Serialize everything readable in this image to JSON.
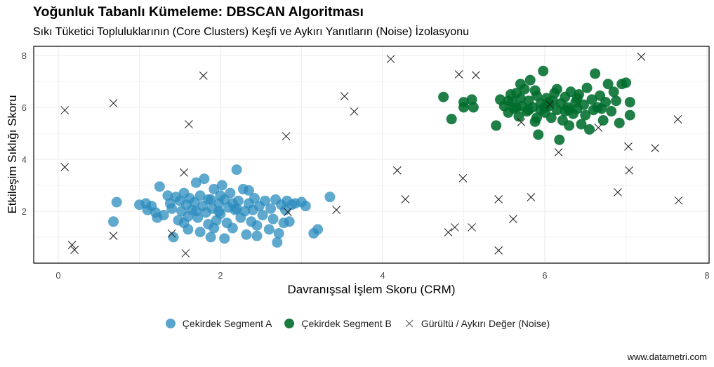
{
  "header": {
    "title": "Yoğunluk Tabanlı Kümeleme: DBSCAN Algoritması",
    "subtitle": "Sıkı Tüketici Topluluklarının (Core Clusters) Keşfi ve Aykırı Yanıtların (Noise) İzolasyonu"
  },
  "caption": "www.datametri.com",
  "colors": {
    "segment_a": "#2b8cbe",
    "segment_b": "#006d2c",
    "noise": "#000000",
    "grid": "#ebebeb",
    "axis_text": "#4d4d4d"
  },
  "legend": [
    {
      "label": "Çekirdek Segment A",
      "icon": "circle-marker-icon",
      "color": "#2b8cbe"
    },
    {
      "label": "Çekirdek Segment B",
      "icon": "circle-marker-icon",
      "color": "#006d2c"
    },
    {
      "label": "Gürültü / Aykırı Değer (Noise)",
      "icon": "cross-marker-icon",
      "color": "#000000"
    }
  ],
  "chart_data": {
    "type": "scatter",
    "title": "Yoğunluk Tabanlı Kümeleme: DBSCAN Algoritması",
    "subtitle": "Sıkı Tüketici Topluluklarının (Core Clusters) Keşfi ve Aykırı Yanıtların (Noise) İzolasyonu",
    "xlabel": "Davranışsal İşlem Skoru (CRM)",
    "ylabel": "Etkileşim Sıklığı Skoru",
    "xlim": [
      -0.3,
      7.95
    ],
    "ylim": [
      0.25,
      8.35
    ],
    "xticks": [
      0,
      2,
      4,
      6,
      8
    ],
    "yticks": [
      2,
      4,
      6,
      8
    ],
    "grid": true,
    "legend_position": "bottom",
    "series": [
      {
        "name": "Çekirdek Segment A",
        "marker": "circle",
        "color": "#2b8cbe",
        "center": [
          2.0,
          2.1
        ],
        "points": [
          [
            0.72,
            2.35
          ],
          [
            0.68,
            1.6
          ],
          [
            1.0,
            2.25
          ],
          [
            1.08,
            2.3
          ],
          [
            1.1,
            2.05
          ],
          [
            1.15,
            2.2
          ],
          [
            1.2,
            1.95
          ],
          [
            1.22,
            1.75
          ],
          [
            1.25,
            2.95
          ],
          [
            1.3,
            1.85
          ],
          [
            1.35,
            2.6
          ],
          [
            1.38,
            2.3
          ],
          [
            1.4,
            2.1
          ],
          [
            1.42,
            1.0
          ],
          [
            1.45,
            2.55
          ],
          [
            1.48,
            1.65
          ],
          [
            1.5,
            2.4
          ],
          [
            1.52,
            2.0
          ],
          [
            1.55,
            1.55
          ],
          [
            1.55,
            2.7
          ],
          [
            1.58,
            2.25
          ],
          [
            1.6,
            1.8
          ],
          [
            1.62,
            2.5
          ],
          [
            1.65,
            2.05
          ],
          [
            1.68,
            2.35
          ],
          [
            1.7,
            3.1
          ],
          [
            1.72,
            1.75
          ],
          [
            1.75,
            2.6
          ],
          [
            1.78,
            2.2
          ],
          [
            1.8,
            3.25
          ],
          [
            1.82,
            1.95
          ],
          [
            1.85,
            2.45
          ],
          [
            1.88,
            1.0
          ],
          [
            1.9,
            2.1
          ],
          [
            1.92,
            2.85
          ],
          [
            1.95,
            1.65
          ],
          [
            1.98,
            2.3
          ],
          [
            2.0,
            1.9
          ],
          [
            2.02,
            3.0
          ],
          [
            2.05,
            2.45
          ],
          [
            2.08,
            1.55
          ],
          [
            2.1,
            2.15
          ],
          [
            2.12,
            2.7
          ],
          [
            2.15,
            1.35
          ],
          [
            2.18,
            2.05
          ],
          [
            2.2,
            3.6
          ],
          [
            2.22,
            2.4
          ],
          [
            2.25,
            1.75
          ],
          [
            2.28,
            2.85
          ],
          [
            2.3,
            2.0
          ],
          [
            2.32,
            1.1
          ],
          [
            2.35,
            2.3
          ],
          [
            2.38,
            1.6
          ],
          [
            2.4,
            2.05
          ],
          [
            2.42,
            2.5
          ],
          [
            2.45,
            1.45
          ],
          [
            2.48,
            2.2
          ],
          [
            2.52,
            1.85
          ],
          [
            2.55,
            2.4
          ],
          [
            2.6,
            1.3
          ],
          [
            2.62,
            2.1
          ],
          [
            2.65,
            1.7
          ],
          [
            2.68,
            2.45
          ],
          [
            2.72,
            1.15
          ],
          [
            2.75,
            2.25
          ],
          [
            2.78,
            1.55
          ],
          [
            2.8,
            2.05
          ],
          [
            2.82,
            2.4
          ],
          [
            2.85,
            1.6
          ],
          [
            2.88,
            2.25
          ],
          [
            2.92,
            2.3
          ],
          [
            3.0,
            2.35
          ],
          [
            3.05,
            2.2
          ],
          [
            3.15,
            1.15
          ],
          [
            3.2,
            1.3
          ],
          [
            3.35,
            2.55
          ],
          [
            1.88,
            2.45
          ],
          [
            2.0,
            2.6
          ],
          [
            1.7,
            2.0
          ],
          [
            2.2,
            2.1
          ],
          [
            1.6,
            1.3
          ],
          [
            1.75,
            1.2
          ],
          [
            2.05,
            0.95
          ],
          [
            2.45,
            1.05
          ],
          [
            2.7,
            0.8
          ],
          [
            1.92,
            1.35
          ],
          [
            2.35,
            2.8
          ],
          [
            1.98,
            2.0
          ],
          [
            2.15,
            2.3
          ],
          [
            1.85,
            1.5
          ]
        ]
      },
      {
        "name": "Çekirdek Segment B",
        "marker": "circle",
        "color": "#006d2c",
        "center": [
          5.95,
          6.1
        ],
        "points": [
          [
            4.75,
            6.4
          ],
          [
            4.85,
            5.55
          ],
          [
            5.0,
            6.0
          ],
          [
            5.0,
            6.2
          ],
          [
            5.1,
            6.3
          ],
          [
            5.12,
            6.0
          ],
          [
            5.4,
            5.3
          ],
          [
            5.45,
            6.3
          ],
          [
            5.5,
            6.05
          ],
          [
            5.55,
            5.8
          ],
          [
            5.58,
            6.5
          ],
          [
            5.6,
            6.2
          ],
          [
            5.62,
            5.95
          ],
          [
            5.65,
            6.55
          ],
          [
            5.68,
            5.65
          ],
          [
            5.7,
            6.35
          ],
          [
            5.72,
            6.05
          ],
          [
            5.75,
            6.7
          ],
          [
            5.78,
            5.85
          ],
          [
            5.8,
            6.25
          ],
          [
            5.82,
            7.05
          ],
          [
            5.85,
            6.0
          ],
          [
            5.88,
            5.45
          ],
          [
            5.9,
            6.45
          ],
          [
            5.92,
            4.95
          ],
          [
            5.95,
            6.15
          ],
          [
            5.98,
            7.4
          ],
          [
            6.0,
            5.8
          ],
          [
            6.02,
            6.35
          ],
          [
            6.05,
            6.05
          ],
          [
            6.08,
            5.6
          ],
          [
            6.1,
            6.25
          ],
          [
            6.12,
            6.55
          ],
          [
            6.15,
            5.9
          ],
          [
            6.18,
            4.75
          ],
          [
            6.2,
            6.15
          ],
          [
            6.22,
            5.5
          ],
          [
            6.25,
            6.4
          ],
          [
            6.28,
            6.0
          ],
          [
            6.3,
            5.3
          ],
          [
            6.32,
            6.6
          ],
          [
            6.35,
            5.75
          ],
          [
            6.38,
            6.2
          ],
          [
            6.4,
            5.95
          ],
          [
            6.42,
            6.5
          ],
          [
            6.45,
            5.35
          ],
          [
            6.48,
            6.1
          ],
          [
            6.5,
            5.7
          ],
          [
            6.52,
            6.75
          ],
          [
            6.55,
            5.15
          ],
          [
            6.58,
            6.3
          ],
          [
            6.6,
            5.9
          ],
          [
            6.62,
            7.3
          ],
          [
            6.65,
            6.0
          ],
          [
            6.68,
            6.45
          ],
          [
            6.72,
            5.5
          ],
          [
            6.75,
            6.2
          ],
          [
            6.78,
            6.9
          ],
          [
            6.82,
            5.85
          ],
          [
            6.85,
            6.6
          ],
          [
            6.88,
            6.25
          ],
          [
            6.92,
            5.4
          ],
          [
            6.95,
            6.9
          ],
          [
            7.0,
            6.95
          ],
          [
            7.05,
            6.2
          ],
          [
            7.05,
            5.7
          ],
          [
            5.88,
            6.65
          ],
          [
            5.7,
            6.9
          ],
          [
            6.0,
            6.0
          ],
          [
            5.95,
            5.9
          ],
          [
            6.05,
            6.2
          ],
          [
            5.8,
            5.9
          ],
          [
            5.65,
            6.0
          ],
          [
            6.25,
            5.85
          ],
          [
            6.4,
            6.35
          ],
          [
            5.55,
            6.25
          ],
          [
            6.15,
            6.7
          ],
          [
            5.9,
            5.6
          ],
          [
            6.7,
            5.95
          ],
          [
            6.3,
            5.9
          ]
        ]
      },
      {
        "name": "Gürültü / Aykırı Değer (Noise)",
        "marker": "x",
        "color": "#000000",
        "points": [
          [
            0.08,
            5.89
          ],
          [
            0.08,
            3.7
          ],
          [
            0.68,
            6.16
          ],
          [
            0.68,
            1.05
          ],
          [
            0.17,
            0.7
          ],
          [
            0.2,
            0.51
          ],
          [
            1.79,
            7.22
          ],
          [
            1.61,
            5.35
          ],
          [
            1.4,
            1.14
          ],
          [
            1.55,
            3.49
          ],
          [
            1.57,
            0.38
          ],
          [
            2.81,
            4.89
          ],
          [
            2.83,
            1.97
          ],
          [
            3.43,
            2.05
          ],
          [
            3.53,
            6.43
          ],
          [
            3.65,
            5.84
          ],
          [
            4.1,
            7.86
          ],
          [
            4.18,
            3.57
          ],
          [
            4.28,
            2.46
          ],
          [
            4.81,
            1.19
          ],
          [
            4.89,
            1.38
          ],
          [
            4.94,
            7.27
          ],
          [
            4.99,
            3.27
          ],
          [
            5.1,
            1.38
          ],
          [
            5.15,
            7.24
          ],
          [
            5.43,
            2.46
          ],
          [
            5.43,
            0.49
          ],
          [
            5.61,
            1.7
          ],
          [
            5.71,
            5.43
          ],
          [
            5.83,
            2.54
          ],
          [
            6.06,
            6.11
          ],
          [
            6.17,
            4.27
          ],
          [
            6.66,
            5.22
          ],
          [
            6.9,
            2.73
          ],
          [
            7.03,
            4.49
          ],
          [
            7.04,
            3.57
          ],
          [
            7.19,
            7.95
          ],
          [
            7.36,
            4.43
          ],
          [
            7.64,
            5.54
          ],
          [
            7.65,
            2.41
          ]
        ]
      }
    ]
  }
}
